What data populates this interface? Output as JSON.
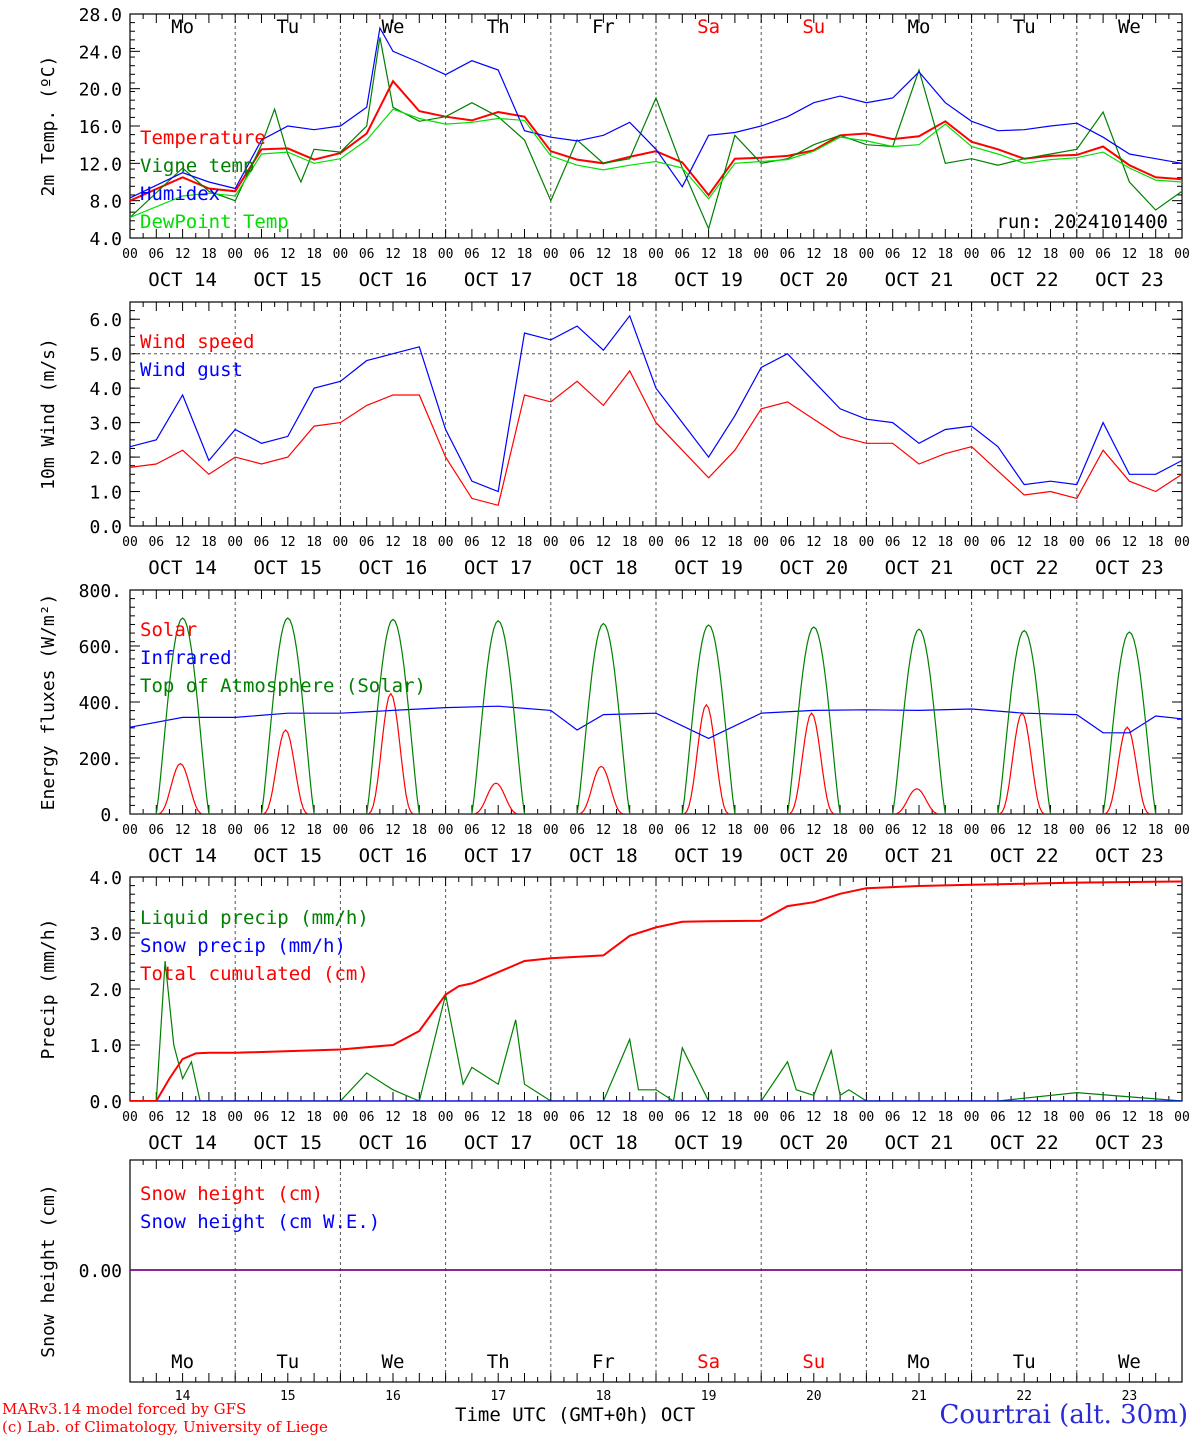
{
  "footer": {
    "credit_line1": "MARv3.14 model forced by GFS",
    "credit_line2": "(c) Lab. of Climatology, University of Liege",
    "x_title": "Time UTC (GMT+0h) OCT",
    "station": "Courtrai (alt. 30m)",
    "run": "run: 2024101400"
  },
  "colors": {
    "red": "#ff0000",
    "green": "#008000",
    "blue": "#0000ff",
    "lightgreen": "#00e000",
    "purple": "#800080",
    "weekend": "#ff0000",
    "station": "#2b2bd6"
  },
  "days": [
    {
      "dow": "Mo",
      "date": "OCT 14",
      "num": "14",
      "weekend": false
    },
    {
      "dow": "Tu",
      "date": "OCT 15",
      "num": "15",
      "weekend": false
    },
    {
      "dow": "We",
      "date": "OCT 16",
      "num": "16",
      "weekend": false
    },
    {
      "dow": "Th",
      "date": "OCT 17",
      "num": "17",
      "weekend": false
    },
    {
      "dow": "Fr",
      "date": "OCT 18",
      "num": "18",
      "weekend": false
    },
    {
      "dow": "Sa",
      "date": "OCT 19",
      "num": "19",
      "weekend": true
    },
    {
      "dow": "Su",
      "date": "OCT 20",
      "num": "20",
      "weekend": true
    },
    {
      "dow": "Mo",
      "date": "OCT 21",
      "num": "21",
      "weekend": false
    },
    {
      "dow": "Tu",
      "date": "OCT 22",
      "num": "22",
      "weekend": false
    },
    {
      "dow": "We",
      "date": "OCT 23",
      "num": "23",
      "weekend": false
    }
  ],
  "hour_labels": [
    "00",
    "06",
    "12",
    "18"
  ],
  "chart_data": [
    {
      "type": "line",
      "ylabel": "2m Temp. (ºC)",
      "ylim": [
        4,
        28
      ],
      "yticks": [
        "4.0",
        "8.0",
        "12.0",
        "16.0",
        "20.0",
        "24.0",
        "28.0"
      ],
      "x_unit": "hours since OCT 14 00 UTC",
      "show_days": true,
      "series": [
        {
          "name": "Temperature",
          "color": "red",
          "x": [
            0,
            12,
            18,
            24,
            30,
            36,
            42,
            48,
            54,
            60,
            66,
            72,
            78,
            84,
            90,
            96,
            102,
            108,
            114,
            120,
            126,
            132,
            138,
            144,
            150,
            156,
            162,
            168,
            174,
            180,
            186,
            192,
            198,
            204,
            210,
            216,
            222,
            228,
            234,
            240
          ],
          "y": [
            8.0,
            10.5,
            9.3,
            9.0,
            13.5,
            13.6,
            12.4,
            13.1,
            15.2,
            20.8,
            17.6,
            17.0,
            16.6,
            17.5,
            17.0,
            13.3,
            12.4,
            12.0,
            12.7,
            13.3,
            12.1,
            8.6,
            12.5,
            12.6,
            12.8,
            13.4,
            15.0,
            15.2,
            14.6,
            14.9,
            16.5,
            14.3,
            13.5,
            12.5,
            12.8,
            12.9,
            13.8,
            11.8,
            10.5,
            10.3
          ]
        },
        {
          "name": "Vigne temp",
          "color": "green",
          "x": [
            0,
            12,
            18,
            24,
            30,
            33,
            36,
            39,
            42,
            48,
            54,
            57,
            60,
            66,
            72,
            78,
            84,
            90,
            96,
            102,
            108,
            114,
            120,
            126,
            132,
            138,
            144,
            150,
            156,
            162,
            168,
            174,
            180,
            186,
            192,
            198,
            204,
            210,
            216,
            222,
            228,
            234,
            240
          ],
          "y": [
            6.2,
            11.5,
            9.0,
            8.0,
            14.0,
            17.8,
            13.0,
            10.0,
            13.5,
            13.2,
            16.0,
            25.5,
            18.0,
            16.5,
            17.0,
            18.5,
            17.0,
            14.5,
            8.0,
            14.5,
            12.0,
            12.5,
            19.0,
            11.5,
            5.0,
            15.0,
            12.0,
            12.5,
            14.0,
            15.0,
            14.0,
            13.8,
            22.0,
            12.0,
            12.5,
            11.8,
            12.5,
            13.0,
            13.5,
            17.5,
            10.0,
            7.0,
            9.0
          ]
        },
        {
          "name": "Humidex",
          "color": "blue",
          "x": [
            0,
            12,
            18,
            24,
            30,
            36,
            42,
            48,
            54,
            57,
            60,
            66,
            72,
            78,
            84,
            90,
            96,
            102,
            108,
            114,
            120,
            126,
            132,
            138,
            144,
            150,
            156,
            162,
            168,
            174,
            180,
            186,
            192,
            198,
            204,
            210,
            216,
            222,
            228,
            234,
            240
          ],
          "y": [
            8.3,
            11.0,
            10.0,
            9.3,
            14.5,
            16.0,
            15.6,
            16.0,
            18.0,
            26.5,
            24.0,
            22.8,
            21.5,
            23.0,
            22.0,
            15.5,
            14.8,
            14.4,
            15.0,
            16.4,
            13.5,
            9.5,
            15.0,
            15.3,
            16.0,
            17.0,
            18.5,
            19.2,
            18.5,
            19.0,
            21.8,
            18.5,
            16.5,
            15.5,
            15.6,
            16.0,
            16.3,
            14.8,
            13.0,
            12.5,
            12.0
          ]
        },
        {
          "name": "DewPoint Temp",
          "color": "lightgreen",
          "x": [
            0,
            12,
            18,
            24,
            30,
            36,
            42,
            48,
            54,
            60,
            66,
            72,
            78,
            84,
            90,
            96,
            102,
            108,
            114,
            120,
            126,
            132,
            138,
            144,
            150,
            156,
            162,
            168,
            174,
            180,
            186,
            192,
            198,
            204,
            210,
            216,
            222,
            228,
            234,
            240
          ],
          "y": [
            6.2,
            8.5,
            8.8,
            8.5,
            13.0,
            13.2,
            12.0,
            12.5,
            14.5,
            17.8,
            16.8,
            16.2,
            16.4,
            16.8,
            16.6,
            12.8,
            11.8,
            11.3,
            11.8,
            12.2,
            11.5,
            8.2,
            12.0,
            12.2,
            12.4,
            13.3,
            14.8,
            14.4,
            13.8,
            14.0,
            16.2,
            13.8,
            13.0,
            12.0,
            12.4,
            12.6,
            13.2,
            11.5,
            10.2,
            10.0
          ]
        }
      ]
    },
    {
      "type": "line",
      "ylabel": "10m Wind (m/s)",
      "ylim": [
        0,
        6.5
      ],
      "yticks": [
        "0.0",
        "1.0",
        "2.0",
        "3.0",
        "4.0",
        "5.0",
        "6.0"
      ],
      "reference_line": 5.0,
      "x_unit": "hours since OCT 14 00 UTC",
      "series": [
        {
          "name": "Wind speed",
          "color": "red",
          "x": [
            0,
            6,
            12,
            18,
            24,
            30,
            36,
            42,
            48,
            54,
            60,
            66,
            72,
            78,
            84,
            90,
            96,
            102,
            108,
            114,
            120,
            126,
            132,
            138,
            144,
            150,
            156,
            162,
            168,
            174,
            180,
            186,
            192,
            198,
            204,
            210,
            216,
            222,
            228,
            234,
            240
          ],
          "y": [
            1.7,
            1.8,
            2.2,
            1.5,
            2.0,
            1.8,
            2.0,
            2.9,
            3.0,
            3.5,
            3.8,
            3.8,
            2.0,
            0.8,
            0.6,
            3.8,
            3.6,
            4.2,
            3.5,
            4.5,
            3.0,
            2.2,
            1.4,
            2.2,
            3.4,
            3.6,
            3.1,
            2.6,
            2.4,
            2.4,
            1.8,
            2.1,
            2.3,
            1.6,
            0.9,
            1.0,
            0.8,
            2.2,
            1.3,
            1.0,
            1.5
          ]
        },
        {
          "name": "Wind gust",
          "color": "blue",
          "x": [
            0,
            6,
            12,
            18,
            24,
            30,
            36,
            42,
            48,
            54,
            60,
            66,
            72,
            78,
            84,
            90,
            96,
            102,
            108,
            114,
            120,
            126,
            132,
            138,
            144,
            150,
            156,
            162,
            168,
            174,
            180,
            186,
            192,
            198,
            204,
            210,
            216,
            222,
            228,
            234,
            240
          ],
          "y": [
            2.3,
            2.5,
            3.8,
            1.9,
            2.8,
            2.4,
            2.6,
            4.0,
            4.2,
            4.8,
            5.0,
            5.2,
            2.8,
            1.3,
            1.0,
            5.6,
            5.4,
            5.8,
            5.1,
            6.1,
            4.0,
            3.0,
            2.0,
            3.2,
            4.6,
            5.0,
            4.2,
            3.4,
            3.1,
            3.0,
            2.4,
            2.8,
            2.9,
            2.3,
            1.2,
            1.3,
            1.2,
            3.0,
            1.5,
            1.5,
            1.9
          ]
        }
      ]
    },
    {
      "type": "line",
      "ylabel": "Energy fluxes (W/m²)",
      "ylim": [
        0,
        800
      ],
      "yticks": [
        "0.",
        "200.",
        "400.",
        "600.",
        "800."
      ],
      "x_unit": "hours since OCT 14 00 UTC",
      "diurnal": {
        "sunrise_hour": 6,
        "sunset_hour": 17
      },
      "series": [
        {
          "name": "Solar",
          "color": "red",
          "daily_peak": [
            180,
            300,
            430,
            110,
            170,
            390,
            360,
            90,
            360,
            310
          ]
        },
        {
          "name": "Infrared",
          "color": "blue",
          "x": [
            0,
            12,
            24,
            36,
            48,
            60,
            72,
            84,
            96,
            102,
            108,
            120,
            132,
            144,
            156,
            168,
            180,
            192,
            204,
            216,
            222,
            228,
            234,
            240
          ],
          "y": [
            310,
            345,
            345,
            360,
            360,
            370,
            380,
            385,
            370,
            300,
            355,
            360,
            270,
            360,
            370,
            372,
            370,
            375,
            360,
            355,
            290,
            290,
            350,
            340
          ]
        },
        {
          "name": "Top of Atmosphere (Solar)",
          "color": "green",
          "daily_peak": [
            700,
            700,
            695,
            690,
            680,
            675,
            668,
            660,
            655,
            650
          ]
        }
      ]
    },
    {
      "type": "line",
      "ylabel": "Precip (mm/h)",
      "ylim": [
        0,
        4
      ],
      "yticks": [
        "0.0",
        "1.0",
        "2.0",
        "3.0",
        "4.0"
      ],
      "x_unit": "hours since OCT 14 00 UTC",
      "series": [
        {
          "name": "Liquid precip (mm/h)",
          "color": "green",
          "x": [
            0,
            6,
            8,
            10,
            12,
            14,
            16,
            18,
            24,
            36,
            48,
            54,
            58,
            60,
            66,
            72,
            76,
            78,
            84,
            88,
            90,
            96,
            108,
            114,
            116,
            120,
            124,
            126,
            132,
            144,
            150,
            152,
            156,
            160,
            162,
            164,
            168,
            180,
            186,
            192,
            198,
            216,
            240
          ],
          "y": [
            0,
            0,
            2.5,
            1.0,
            0.4,
            0.7,
            0,
            0,
            0,
            0,
            0,
            0.5,
            0.3,
            0.2,
            0,
            1.9,
            0.3,
            0.6,
            0.3,
            1.45,
            0.3,
            0,
            0,
            1.1,
            0.2,
            0.2,
            0,
            0.95,
            0,
            0,
            0.7,
            0.2,
            0.1,
            0.9,
            0.1,
            0.2,
            0,
            0,
            0,
            0,
            0,
            0.15,
            0
          ]
        },
        {
          "name": "Snow precip (mm/h)",
          "color": "blue",
          "x": [
            0,
            240
          ],
          "y": [
            0,
            0
          ]
        },
        {
          "name": "Total cumulated (cm)",
          "color": "red",
          "x": [
            0,
            6,
            9,
            12,
            15,
            18,
            24,
            48,
            60,
            66,
            72,
            75,
            78,
            84,
            90,
            96,
            108,
            114,
            120,
            126,
            132,
            144,
            150,
            156,
            162,
            168,
            180,
            192,
            204,
            216,
            240
          ],
          "y": [
            0,
            0,
            0.4,
            0.75,
            0.85,
            0.86,
            0.86,
            0.92,
            1.0,
            1.25,
            1.9,
            2.05,
            2.1,
            2.3,
            2.5,
            2.55,
            2.6,
            2.95,
            3.1,
            3.2,
            3.21,
            3.22,
            3.48,
            3.55,
            3.7,
            3.8,
            3.84,
            3.86,
            3.88,
            3.9,
            3.92
          ]
        }
      ]
    },
    {
      "type": "line",
      "ylabel": "Snow height (cm)",
      "yticks": [
        "0.00"
      ],
      "x_unit": "hours since OCT 14 00 UTC",
      "show_days": true,
      "series": [
        {
          "name": "Snow height (cm)",
          "color": "red",
          "x": [
            0,
            240
          ],
          "y": [
            0,
            0
          ]
        },
        {
          "name": "Snow height (cm W.E.)",
          "color": "blue",
          "x": [
            0,
            240
          ],
          "y": [
            0,
            0
          ]
        }
      ]
    }
  ]
}
